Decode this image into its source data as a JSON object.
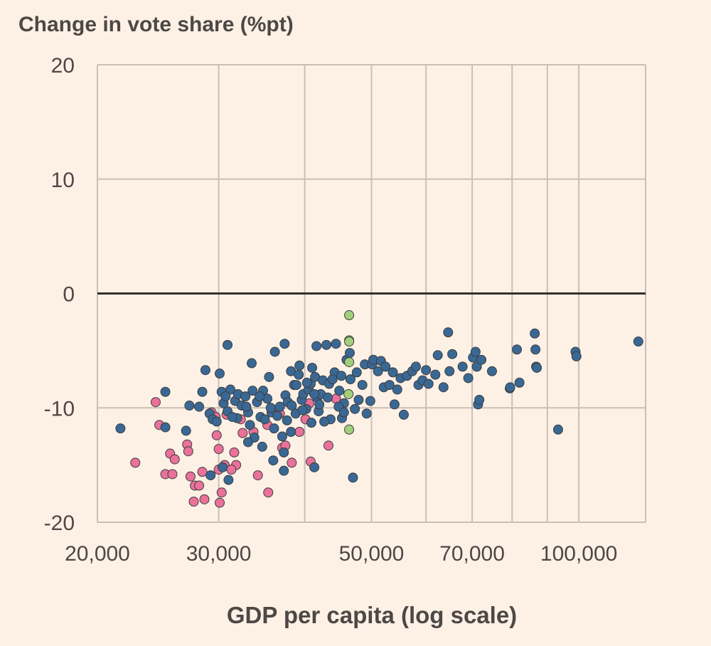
{
  "chart_data": {
    "type": "scatter",
    "title": "",
    "ylabel": "Change in vote share (%pt)",
    "xlabel": "GDP per capita (log scale)",
    "x_scale": "log",
    "xlim": [
      20000,
      125000
    ],
    "ylim": [
      -20,
      20
    ],
    "x_ticks": [
      {
        "value": 20000,
        "label": "20,000"
      },
      {
        "value": 30000,
        "label": "30,000"
      },
      {
        "value": 50000,
        "label": "50,000"
      },
      {
        "value": 70000,
        "label": "70,000"
      },
      {
        "value": 100000,
        "label": "100,000"
      }
    ],
    "x_grid": [
      20000,
      30000,
      40000,
      50000,
      60000,
      70000,
      80000,
      90000,
      100000,
      125000
    ],
    "y_ticks": [
      {
        "value": 20,
        "label": "20"
      },
      {
        "value": 10,
        "label": "10"
      },
      {
        "value": 0,
        "label": "0"
      },
      {
        "value": -10,
        "label": "-10"
      },
      {
        "value": -20,
        "label": "-20"
      }
    ],
    "colors": {
      "background": "#fdf1e6",
      "grid": "#c9bfb5",
      "zero_line": "#33302e"
    },
    "series": [
      {
        "name": "pink",
        "color": "#e9719a",
        "points": [
          [
            24300,
            -9.5
          ],
          [
            24600,
            -11.5
          ],
          [
            22700,
            -14.8
          ],
          [
            25500,
            -14.0
          ],
          [
            25900,
            -14.5
          ],
          [
            25100,
            -15.8
          ],
          [
            25700,
            -15.8
          ],
          [
            27000,
            -13.2
          ],
          [
            27300,
            -16.0
          ],
          [
            28400,
            -15.6
          ],
          [
            27700,
            -16.8
          ],
          [
            27600,
            -18.2
          ],
          [
            28600,
            -18.0
          ],
          [
            27100,
            -13.8
          ],
          [
            28100,
            -16.8
          ],
          [
            29300,
            -10.4
          ],
          [
            29800,
            -12.4
          ],
          [
            30000,
            -13.6
          ],
          [
            30000,
            -15.4
          ],
          [
            30600,
            -15.0
          ],
          [
            30300,
            -17.4
          ],
          [
            30100,
            -18.3
          ],
          [
            31600,
            -13.9
          ],
          [
            31800,
            -15.0
          ],
          [
            31300,
            -15.4
          ],
          [
            29700,
            -10.8
          ],
          [
            32500,
            -12.2
          ],
          [
            33700,
            -12.1
          ],
          [
            35300,
            -11.5
          ],
          [
            34200,
            -15.9
          ],
          [
            35400,
            -17.4
          ],
          [
            36800,
            -10.5
          ],
          [
            37100,
            -13.5
          ],
          [
            37500,
            -13.3
          ],
          [
            38300,
            -14.8
          ],
          [
            39300,
            -12.1
          ],
          [
            40800,
            -14.7
          ],
          [
            40600,
            -9.6
          ],
          [
            40100,
            -11.0
          ],
          [
            43300,
            -13.3
          ],
          [
            44400,
            -9.2
          ],
          [
            30800,
            -10.6
          ],
          [
            32300,
            -11.0
          ]
        ]
      },
      {
        "name": "green",
        "color": "#a1cf7a",
        "points": [
          [
            46400,
            -1.9
          ],
          [
            46400,
            -4.1
          ],
          [
            46400,
            -4.2
          ],
          [
            46400,
            -6.0
          ],
          [
            46300,
            -8.8
          ],
          [
            46400,
            -11.9
          ]
        ]
      },
      {
        "name": "blue",
        "color": "#3a6895",
        "points": [
          [
            21600,
            -11.8
          ],
          [
            25100,
            -8.6
          ],
          [
            25100,
            -11.7
          ],
          [
            26900,
            -12.0
          ],
          [
            27200,
            -9.8
          ],
          [
            28100,
            -9.9
          ],
          [
            28400,
            -8.6
          ],
          [
            28700,
            -6.7
          ],
          [
            29100,
            -10.5
          ],
          [
            29400,
            -11.0
          ],
          [
            29800,
            -11.2
          ],
          [
            30100,
            -7.0
          ],
          [
            30300,
            -8.6
          ],
          [
            30500,
            -9.6
          ],
          [
            30900,
            -10.3
          ],
          [
            30900,
            -4.5
          ],
          [
            31200,
            -8.4
          ],
          [
            31700,
            -9.4
          ],
          [
            31900,
            -10.9
          ],
          [
            32000,
            -8.8
          ],
          [
            32400,
            -9.8
          ],
          [
            32800,
            -9.0
          ],
          [
            33100,
            -10.4
          ],
          [
            33300,
            -11.5
          ],
          [
            33500,
            -6.1
          ],
          [
            33600,
            -8.5
          ],
          [
            33800,
            -12.6
          ],
          [
            34100,
            -9.5
          ],
          [
            34500,
            -10.8
          ],
          [
            34800,
            -8.5
          ],
          [
            35000,
            -11.0
          ],
          [
            35300,
            -9.2
          ],
          [
            35500,
            -7.3
          ],
          [
            35800,
            -10.4
          ],
          [
            36100,
            -11.8
          ],
          [
            36200,
            -5.1
          ],
          [
            36800,
            -9.9
          ],
          [
            37400,
            -4.4
          ],
          [
            37500,
            -8.9
          ],
          [
            37800,
            -9.5
          ],
          [
            38200,
            -12.1
          ],
          [
            38200,
            -6.8
          ],
          [
            38600,
            -8.0
          ],
          [
            38800,
            -10.5
          ],
          [
            39200,
            -7.1
          ],
          [
            39300,
            -6.3
          ],
          [
            39600,
            -9.3
          ],
          [
            39800,
            -8.8
          ],
          [
            40200,
            -10.1
          ],
          [
            40500,
            -8.4
          ],
          [
            40800,
            -7.9
          ],
          [
            41000,
            -6.5
          ],
          [
            41400,
            -7.3
          ],
          [
            41700,
            -9.1
          ],
          [
            41600,
            -4.6
          ],
          [
            41900,
            -10.3
          ],
          [
            42200,
            -8.8
          ],
          [
            42500,
            -7.6
          ],
          [
            43000,
            -4.5
          ],
          [
            43400,
            -7.9
          ],
          [
            43600,
            -11.0
          ],
          [
            44200,
            -6.9
          ],
          [
            44400,
            -4.4
          ],
          [
            44900,
            -8.5
          ],
          [
            45200,
            -7.2
          ],
          [
            45300,
            -10.9
          ],
          [
            45600,
            -9.6
          ],
          [
            46000,
            -5.8
          ],
          [
            46500,
            -5.2
          ],
          [
            46600,
            -7.5
          ],
          [
            47000,
            -16.1
          ],
          [
            47300,
            -10.1
          ],
          [
            47600,
            -6.9
          ],
          [
            47900,
            -9.3
          ],
          [
            48500,
            -8.0
          ],
          [
            48900,
            -6.2
          ],
          [
            49200,
            -10.5
          ],
          [
            49800,
            -9.4
          ],
          [
            50100,
            -6.2
          ],
          [
            50300,
            -5.8
          ],
          [
            51100,
            -6.8
          ],
          [
            51600,
            -5.9
          ],
          [
            52100,
            -8.2
          ],
          [
            52400,
            -6.4
          ],
          [
            53100,
            -8.0
          ],
          [
            53700,
            -6.9
          ],
          [
            54000,
            -9.7
          ],
          [
            54500,
            -8.4
          ],
          [
            55100,
            -7.4
          ],
          [
            55700,
            -10.6
          ],
          [
            56300,
            -7.2
          ],
          [
            57300,
            -6.8
          ],
          [
            58000,
            -6.4
          ],
          [
            58500,
            -8.0
          ],
          [
            59300,
            -7.6
          ],
          [
            60000,
            -6.7
          ],
          [
            60500,
            -7.9
          ],
          [
            61900,
            -7.1
          ],
          [
            62400,
            -5.4
          ],
          [
            63600,
            -8.2
          ],
          [
            64600,
            -3.4
          ],
          [
            64900,
            -6.8
          ],
          [
            65500,
            -5.3
          ],
          [
            67800,
            -6.4
          ],
          [
            69100,
            -7.4
          ],
          [
            70200,
            -5.6
          ],
          [
            70800,
            -5.1
          ],
          [
            71100,
            -6.4
          ],
          [
            71400,
            -9.7
          ],
          [
            71700,
            -9.3
          ],
          [
            72200,
            -5.8
          ],
          [
            74800,
            -6.8
          ],
          [
            79400,
            -8.3
          ],
          [
            79500,
            -8.2
          ],
          [
            81300,
            -4.9
          ],
          [
            82000,
            -7.8
          ],
          [
            86300,
            -3.5
          ],
          [
            86500,
            -4.9
          ],
          [
            86700,
            -6.4
          ],
          [
            86900,
            -6.5
          ],
          [
            93300,
            -11.9
          ],
          [
            98900,
            -5.1
          ],
          [
            99200,
            -5.5
          ],
          [
            122000,
            -4.2
          ],
          [
            30700,
            -9.0
          ],
          [
            31400,
            -10.8
          ],
          [
            32900,
            -9.9
          ],
          [
            34400,
            -9.0
          ],
          [
            35700,
            -10.0
          ],
          [
            36500,
            -10.7
          ],
          [
            37100,
            -12.5
          ],
          [
            37700,
            -11.1
          ],
          [
            38300,
            -9.8
          ],
          [
            38900,
            -8.0
          ],
          [
            39700,
            -10.2
          ],
          [
            40300,
            -7.8
          ],
          [
            40900,
            -11.3
          ],
          [
            41300,
            -8.8
          ],
          [
            42000,
            -9.7
          ],
          [
            42700,
            -11.2
          ],
          [
            43200,
            -9.1
          ],
          [
            43900,
            -7.5
          ],
          [
            44800,
            -9.9
          ],
          [
            45600,
            -10.4
          ],
          [
            33100,
            -13.0
          ],
          [
            34700,
            -13.4
          ],
          [
            36000,
            -14.6
          ],
          [
            37300,
            -15.5
          ],
          [
            41300,
            -15.2
          ],
          [
            30400,
            -15.2
          ],
          [
            29200,
            -15.9
          ],
          [
            31000,
            -16.3
          ],
          [
            37300,
            -13.9
          ]
        ]
      }
    ]
  }
}
